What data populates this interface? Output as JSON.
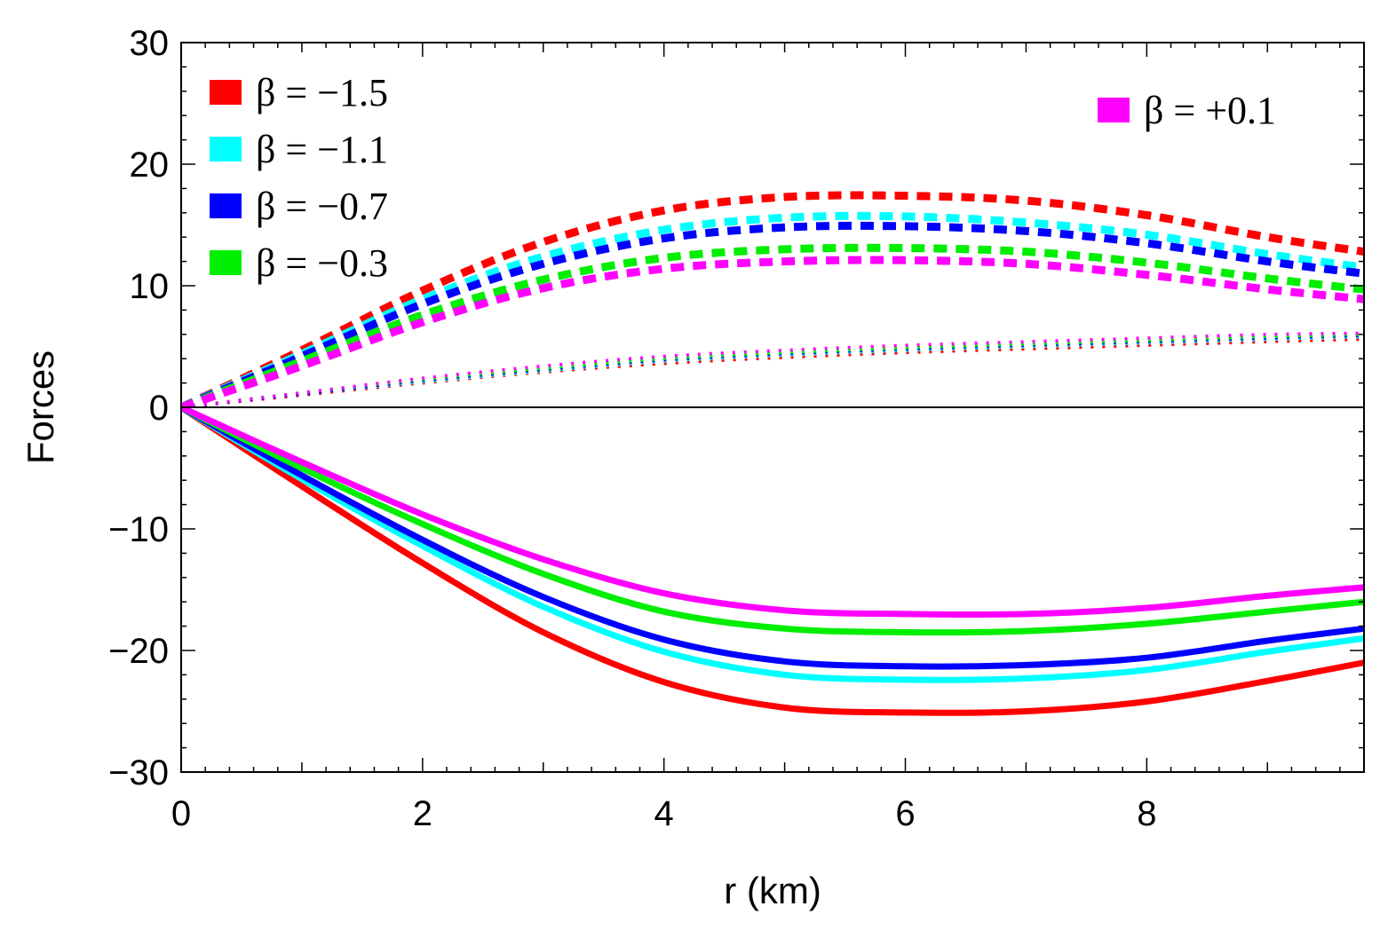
{
  "chart_data": {
    "type": "line",
    "xlabel": "r (km)",
    "ylabel": "Forces",
    "xlim": [
      0,
      9.8
    ],
    "ylim": [
      -30,
      30
    ],
    "x_ticks": [
      "0",
      "2",
      "4",
      "6",
      "8"
    ],
    "x_tick_values": [
      0,
      2,
      4,
      6,
      8
    ],
    "y_ticks": [
      "30",
      "20",
      "10",
      "0",
      "−10",
      "−20",
      "−30"
    ],
    "y_tick_values": [
      30,
      20,
      10,
      0,
      -10,
      -20,
      -30
    ],
    "x": [
      0,
      1,
      2,
      3,
      4,
      5,
      6,
      7,
      8,
      9,
      9.8
    ],
    "legend": [
      {
        "label": "β = −1.5",
        "color": "#ff0000",
        "position": "top-left"
      },
      {
        "label": "β = −1.1",
        "color": "#00ffff",
        "position": "top-left"
      },
      {
        "label": "β = −0.7",
        "color": "#0000ff",
        "position": "top-left"
      },
      {
        "label": "β = −0.3",
        "color": "#00ee00",
        "position": "top-left"
      },
      {
        "label": "β = +0.1",
        "color": "#ff00ff",
        "position": "top-right"
      }
    ],
    "series": [
      {
        "name": "β = −1.5 solid",
        "color": "#ff0000",
        "style": "solid",
        "values": [
          0,
          -6.5,
          -12.8,
          -18.5,
          -22.6,
          -24.7,
          -25.1,
          -25.0,
          -24.2,
          -22.5,
          -21.0
        ]
      },
      {
        "name": "β = −1.1 solid",
        "color": "#00ffff",
        "style": "solid",
        "values": [
          0,
          -5.9,
          -11.4,
          -16.4,
          -20.1,
          -22.0,
          -22.4,
          -22.3,
          -21.6,
          -20.1,
          -19.0
        ]
      },
      {
        "name": "β = −0.7 solid",
        "color": "#0000ff",
        "style": "solid",
        "values": [
          0,
          -5.6,
          -10.9,
          -15.6,
          -19.1,
          -20.9,
          -21.3,
          -21.2,
          -20.6,
          -19.2,
          -18.2
        ]
      },
      {
        "name": "β = −0.3 solid",
        "color": "#00ee00",
        "style": "solid",
        "values": [
          0,
          -5.0,
          -9.6,
          -13.7,
          -16.8,
          -18.2,
          -18.5,
          -18.4,
          -17.8,
          -16.8,
          -16.0
        ]
      },
      {
        "name": "β = +0.1 solid",
        "color": "#ff00ff",
        "style": "solid",
        "values": [
          0,
          -4.5,
          -8.8,
          -12.5,
          -15.3,
          -16.7,
          -17.0,
          -17.0,
          -16.5,
          -15.5,
          -14.8
        ]
      },
      {
        "name": "β = −1.5 dashed",
        "color": "#ff0000",
        "style": "dashed",
        "values": [
          0,
          4.7,
          9.6,
          13.6,
          16.2,
          17.3,
          17.4,
          17.0,
          15.8,
          14.0,
          12.8
        ]
      },
      {
        "name": "β = −1.1 dashed",
        "color": "#00ffff",
        "style": "dashed",
        "values": [
          0,
          4.4,
          8.9,
          12.4,
          14.6,
          15.6,
          15.7,
          15.2,
          14.2,
          12.6,
          11.5
        ]
      },
      {
        "name": "β = −0.7 dashed",
        "color": "#0000ff",
        "style": "dashed",
        "values": [
          0,
          4.2,
          8.5,
          11.8,
          13.9,
          14.8,
          14.9,
          14.5,
          13.5,
          12.0,
          11.0
        ]
      },
      {
        "name": "β = −0.3 dashed",
        "color": "#00ee00",
        "style": "dashed",
        "values": [
          0,
          3.8,
          7.6,
          10.5,
          12.3,
          13.0,
          13.1,
          12.8,
          11.9,
          10.6,
          9.7
        ]
      },
      {
        "name": "β = +0.1 dashed",
        "color": "#ff00ff",
        "style": "dashed",
        "values": [
          0,
          3.4,
          7.0,
          9.8,
          11.4,
          12.0,
          12.1,
          11.8,
          10.9,
          9.7,
          8.9
        ]
      },
      {
        "name": "β = −1.5 dotted",
        "color": "#ff0000",
        "style": "dotted",
        "values": [
          0,
          1.0,
          2.0,
          2.9,
          3.6,
          4.1,
          4.5,
          4.8,
          5.1,
          5.4,
          5.6
        ]
      },
      {
        "name": "β = −1.1 dotted",
        "color": "#00ffff",
        "style": "dotted",
        "values": [
          0,
          1.1,
          2.1,
          3.0,
          3.8,
          4.3,
          4.7,
          5.0,
          5.3,
          5.6,
          5.8
        ]
      },
      {
        "name": "β = −0.7 dotted",
        "color": "#0000ff",
        "style": "dotted",
        "values": [
          0,
          1.1,
          2.2,
          3.1,
          3.9,
          4.4,
          4.8,
          5.1,
          5.4,
          5.7,
          5.9
        ]
      },
      {
        "name": "β = −0.3 dotted",
        "color": "#00ee00",
        "style": "dotted",
        "values": [
          0,
          1.2,
          2.3,
          3.2,
          4.0,
          4.5,
          4.9,
          5.2,
          5.5,
          5.8,
          6.0
        ]
      },
      {
        "name": "β = +0.1 dotted",
        "color": "#ff00ff",
        "style": "dotted",
        "values": [
          0,
          1.2,
          2.4,
          3.4,
          4.2,
          4.7,
          5.1,
          5.4,
          5.7,
          6.0,
          6.1
        ]
      }
    ]
  }
}
